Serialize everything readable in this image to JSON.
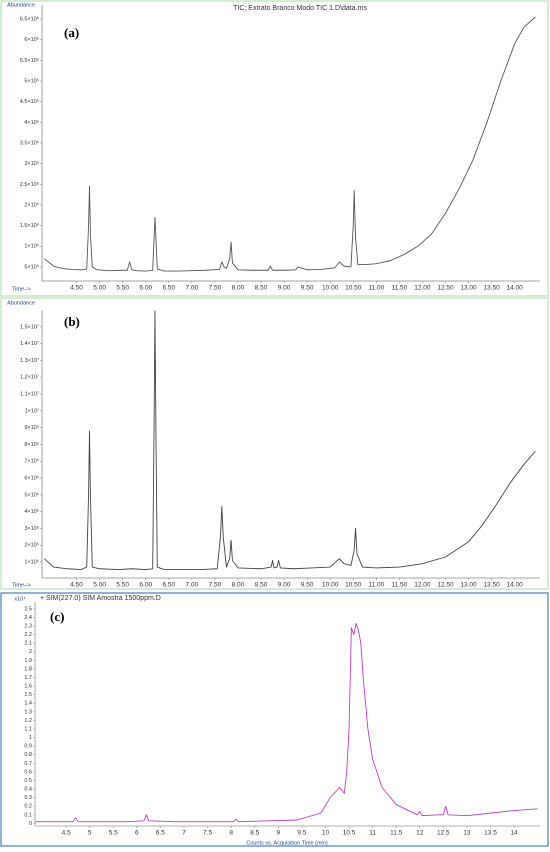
{
  "chart_data": [
    {
      "type": "line",
      "panel_label": "(a)",
      "title": "TIC: Extrato Branco Modo TIC 1.D\\data.ms",
      "ylabel": "Abundance",
      "xlabel": "Time-->",
      "color": "#555555",
      "x": [
        3.8,
        4.0,
        4.2,
        4.4,
        4.6,
        4.72,
        4.76,
        4.78,
        4.8,
        4.84,
        4.95,
        5.2,
        5.5,
        5.6,
        5.65,
        5.7,
        5.8,
        6.0,
        6.15,
        6.2,
        6.25,
        6.4,
        6.7,
        7.0,
        7.3,
        7.6,
        7.65,
        7.7,
        7.75,
        7.82,
        7.85,
        7.88,
        8.0,
        8.3,
        8.65,
        8.7,
        8.75,
        9.0,
        9.25,
        9.3,
        9.5,
        9.8,
        10.1,
        10.2,
        10.3,
        10.45,
        10.5,
        10.52,
        10.55,
        10.6,
        10.8,
        11.0,
        11.3,
        11.6,
        11.9,
        12.2,
        12.5,
        12.8,
        13.1,
        13.4,
        13.7,
        14.0,
        14.2,
        14.45
      ],
      "values": [
        700000,
        520000,
        460000,
        440000,
        430000,
        450000,
        1500000,
        2450000,
        1300000,
        500000,
        430000,
        410000,
        420000,
        420000,
        620000,
        430000,
        410000,
        400000,
        420000,
        1700000,
        450000,
        400000,
        400000,
        410000,
        420000,
        440000,
        620000,
        500000,
        460000,
        700000,
        1100000,
        600000,
        430000,
        420000,
        420000,
        520000,
        420000,
        420000,
        430000,
        500000,
        430000,
        440000,
        480000,
        620000,
        520000,
        500000,
        1500000,
        2350000,
        1200000,
        560000,
        560000,
        580000,
        650000,
        800000,
        1000000,
        1300000,
        1800000,
        2400000,
        3100000,
        4000000,
        5000000,
        5900000,
        6300000,
        6550000
      ],
      "xlim": [
        3.75,
        14.55
      ],
      "ylim": [
        160000,
        6840000
      ],
      "xticks": [
        {
          "value": 4.5,
          "label": "4.50"
        },
        {
          "value": 5,
          "label": "5.00"
        },
        {
          "value": 5.5,
          "label": "5.50"
        },
        {
          "value": 6,
          "label": "6.00"
        },
        {
          "value": 6.5,
          "label": "6.50"
        },
        {
          "value": 7,
          "label": "7.00"
        },
        {
          "value": 7.5,
          "label": "7.50"
        },
        {
          "value": 8,
          "label": "8.00"
        },
        {
          "value": 8.5,
          "label": "8.50"
        },
        {
          "value": 9,
          "label": "9.00"
        },
        {
          "value": 9.5,
          "label": "9.50"
        },
        {
          "value": 10,
          "label": "10.00"
        },
        {
          "value": 10.5,
          "label": "10.50"
        },
        {
          "value": 11,
          "label": "11.00"
        },
        {
          "value": 11.5,
          "label": "11.50"
        },
        {
          "value": 12,
          "label": "12.00"
        },
        {
          "value": 12.5,
          "label": "12.50"
        },
        {
          "value": 13,
          "label": "13.00"
        },
        {
          "value": 13.5,
          "label": "13.50"
        },
        {
          "value": 14,
          "label": "14.00"
        }
      ],
      "yticks": [
        {
          "value": 500000,
          "label": "5×10⁵"
        },
        {
          "value": 1000000,
          "label": "1×10⁶"
        },
        {
          "value": 1500000,
          "label": "1.5×10⁶"
        },
        {
          "value": 2000000,
          "label": "2×10⁶"
        },
        {
          "value": 2500000,
          "label": "2.5×10⁶"
        },
        {
          "value": 3000000,
          "label": "3×10⁶"
        },
        {
          "value": 3500000,
          "label": "3.5×10⁶"
        },
        {
          "value": 4000000,
          "label": "4×10⁶"
        },
        {
          "value": 4500000,
          "label": "4.5×10⁶"
        },
        {
          "value": 5000000,
          "label": "5×10⁶"
        },
        {
          "value": 5500000,
          "label": "5.5×10⁶"
        },
        {
          "value": 6000000,
          "label": "6×10⁶"
        },
        {
          "value": 6500000,
          "label": "6.5×10⁶"
        }
      ]
    },
    {
      "type": "line",
      "panel_label": "(b)",
      "ylabel": "Abundance",
      "xlabel": "Time-->",
      "color": "#444444",
      "x": [
        3.8,
        4.0,
        4.3,
        4.6,
        4.72,
        4.76,
        4.78,
        4.8,
        4.84,
        5.0,
        5.4,
        5.7,
        6.0,
        6.15,
        6.18,
        6.2,
        6.22,
        6.25,
        6.4,
        6.8,
        7.2,
        7.55,
        7.62,
        7.65,
        7.68,
        7.75,
        7.82,
        7.85,
        7.88,
        8.0,
        8.5,
        8.72,
        8.75,
        8.78,
        8.85,
        8.88,
        8.92,
        9.2,
        9.6,
        10.0,
        10.2,
        10.3,
        10.45,
        10.52,
        10.55,
        10.58,
        10.7,
        11.0,
        11.5,
        12.0,
        12.5,
        13.0,
        13.3,
        13.6,
        13.9,
        14.2,
        14.45
      ],
      "values": [
        1200000,
        700000,
        600000,
        550000,
        700000,
        5000000,
        8800000,
        5000000,
        700000,
        600000,
        550000,
        600000,
        550000,
        600000,
        9000000,
        15950000,
        9000000,
        700000,
        550000,
        550000,
        550000,
        600000,
        2500000,
        4300000,
        2500000,
        700000,
        1200000,
        2300000,
        1100000,
        650000,
        600000,
        700000,
        1100000,
        650000,
        700000,
        1100000,
        650000,
        600000,
        650000,
        700000,
        1200000,
        900000,
        800000,
        1700000,
        3000000,
        1500000,
        700000,
        650000,
        700000,
        900000,
        1300000,
        2200000,
        3200000,
        4400000,
        5700000,
        6800000,
        7600000
      ],
      "xlim": [
        3.75,
        14.55
      ],
      "ylim": [
        50000,
        16000000
      ],
      "xticks": [
        {
          "value": 4.5,
          "label": "4.50"
        },
        {
          "value": 5,
          "label": "5.00"
        },
        {
          "value": 5.5,
          "label": "5.50"
        },
        {
          "value": 6,
          "label": "6.00"
        },
        {
          "value": 6.5,
          "label": "6.50"
        },
        {
          "value": 7,
          "label": "7.00"
        },
        {
          "value": 7.5,
          "label": "7.50"
        },
        {
          "value": 8,
          "label": "8.00"
        },
        {
          "value": 8.5,
          "label": "8.50"
        },
        {
          "value": 9,
          "label": "9.00"
        },
        {
          "value": 9.5,
          "label": "9.50"
        },
        {
          "value": 10,
          "label": "10.00"
        },
        {
          "value": 10.5,
          "label": "10.50"
        },
        {
          "value": 11,
          "label": "11.00"
        },
        {
          "value": 11.5,
          "label": "11.50"
        },
        {
          "value": 12,
          "label": "12.00"
        },
        {
          "value": 12.5,
          "label": "12.50"
        },
        {
          "value": 13,
          "label": "13.00"
        },
        {
          "value": 13.5,
          "label": "13.50"
        },
        {
          "value": 14,
          "label": "14.00"
        }
      ],
      "yticks": [
        {
          "value": 1000000,
          "label": "1×10⁶"
        },
        {
          "value": 2000000,
          "label": "2×10⁶"
        },
        {
          "value": 3000000,
          "label": "3×10⁶"
        },
        {
          "value": 4000000,
          "label": "4×10⁶"
        },
        {
          "value": 5000000,
          "label": "5×10⁶"
        },
        {
          "value": 6000000,
          "label": "6×10⁶"
        },
        {
          "value": 7000000,
          "label": "7×10⁶"
        },
        {
          "value": 8000000,
          "label": "8×10⁶"
        },
        {
          "value": 9000000,
          "label": "9×10⁶"
        },
        {
          "value": 10000000,
          "label": "1×10⁷"
        },
        {
          "value": 11000000,
          "label": "1.1×10⁷"
        },
        {
          "value": 12000000,
          "label": "1.2×10⁷"
        },
        {
          "value": 13000000,
          "label": "1.3×10⁷"
        },
        {
          "value": 14000000,
          "label": "1.4×10⁷"
        },
        {
          "value": 15000000,
          "label": "1.5×10⁷"
        }
      ]
    },
    {
      "type": "line",
      "panel_label": "(c)",
      "title": "+ SIM(227.0) SIM Amostra 1500ppm.D",
      "ylabel": "x10⁴",
      "xlabel": "Counts vs. Acquisition Time (min)",
      "color": "#c03fc0",
      "x": [
        3.85,
        4.3,
        4.65,
        4.7,
        4.75,
        5.2,
        5.8,
        6.15,
        6.2,
        6.25,
        6.8,
        7.5,
        8.05,
        8.1,
        8.15,
        8.8,
        9.4,
        9.9,
        10.1,
        10.3,
        10.4,
        10.45,
        10.5,
        10.55,
        10.6,
        10.65,
        10.7,
        10.75,
        10.8,
        10.9,
        11.0,
        11.2,
        11.5,
        11.8,
        11.95,
        12.0,
        12.05,
        12.4,
        12.5,
        12.55,
        12.6,
        13.0,
        13.5,
        14.0,
        14.5
      ],
      "values": [
        0.02,
        0.02,
        0.02,
        0.07,
        0.02,
        0.02,
        0.02,
        0.03,
        0.1,
        0.03,
        0.02,
        0.02,
        0.02,
        0.05,
        0.02,
        0.03,
        0.04,
        0.12,
        0.3,
        0.42,
        0.35,
        0.6,
        1.1,
        2.28,
        2.2,
        2.33,
        2.25,
        2.1,
        1.7,
        1.1,
        0.75,
        0.42,
        0.22,
        0.14,
        0.1,
        0.14,
        0.09,
        0.1,
        0.1,
        0.2,
        0.1,
        0.09,
        0.12,
        0.15,
        0.17
      ],
      "xlim": [
        3.84,
        14.55
      ],
      "ylim": [
        -0.03,
        2.58
      ],
      "xticks": [
        4.5,
        5,
        5.5,
        6,
        6.5,
        7,
        7.5,
        8,
        8.5,
        9,
        9.5,
        10,
        10.5,
        11,
        11.5,
        12,
        12.5,
        13,
        13.5,
        14
      ],
      "yticks": [
        0,
        0.1,
        0.2,
        0.3,
        0.4,
        0.5,
        0.6,
        0.7,
        0.8,
        0.9,
        1,
        1.1,
        1.2,
        1.3,
        1.4,
        1.5,
        1.6,
        1.7,
        1.8,
        1.9,
        2,
        2.1,
        2.2,
        2.3,
        2.4,
        2.5
      ]
    }
  ]
}
